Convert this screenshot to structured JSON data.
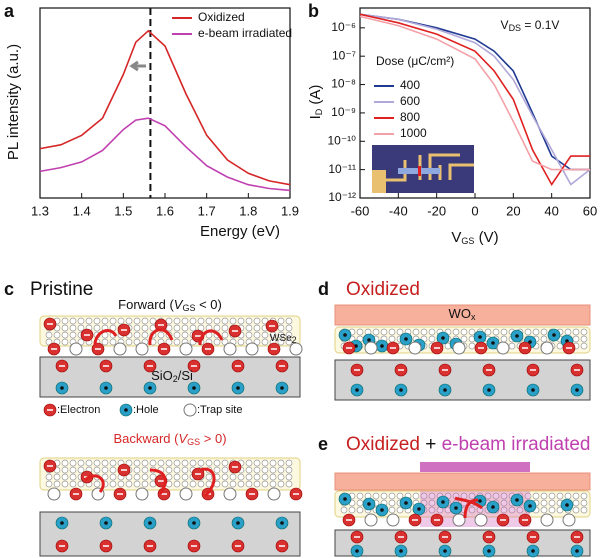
{
  "chart_data": [
    {
      "type": "line",
      "panel_label": "a",
      "xlabel": "Energy (eV)",
      "ylabel": "PL intensity (a.u.)",
      "x": [
        1.3,
        1.35,
        1.4,
        1.45,
        1.5,
        1.53,
        1.56,
        1.6,
        1.65,
        1.7,
        1.75,
        1.8,
        1.85,
        1.9
      ],
      "series": [
        {
          "name": "Oxidized",
          "color": "#d62728",
          "values": [
            0.26,
            0.28,
            0.33,
            0.42,
            0.65,
            0.82,
            0.88,
            0.8,
            0.55,
            0.33,
            0.2,
            0.13,
            0.09,
            0.07
          ]
        },
        {
          "name": "e-beam irradiated",
          "color": "#c040b0",
          "values": [
            0.14,
            0.16,
            0.19,
            0.25,
            0.36,
            0.41,
            0.42,
            0.38,
            0.27,
            0.17,
            0.11,
            0.07,
            0.05,
            0.04
          ]
        }
      ],
      "xlim": [
        1.3,
        1.9
      ],
      "xticks": [
        1.3,
        1.4,
        1.5,
        1.6,
        1.7,
        1.8,
        1.9
      ],
      "ylim": [
        0,
        1
      ],
      "vline": 1.565,
      "legend": "upper right"
    },
    {
      "type": "line",
      "panel_label": "b",
      "xlabel": [
        "V",
        "GS",
        " (V)"
      ],
      "ylabel": [
        "I",
        "D",
        " (A)"
      ],
      "annotation": [
        "V",
        "DS",
        " = 0.1V"
      ],
      "legend_title": "Dose (μC/cm²)",
      "ylog": true,
      "x": [
        -60,
        -40,
        -20,
        0,
        10,
        20,
        30,
        40,
        50,
        60
      ],
      "series": [
        {
          "name": "400",
          "color": "#1f3a93",
          "values": [
            3e-06,
            2e-06,
            1e-06,
            4e-07,
            1.5e-07,
            3e-08,
            1e-09,
            3e-11,
            1e-11,
            1e-11
          ]
        },
        {
          "name": "600",
          "color": "#b0a8d8",
          "values": [
            3e-06,
            2e-06,
            9e-07,
            3e-07,
            1e-07,
            1.5e-08,
            8e-10,
            5e-11,
            3e-12,
            1e-11
          ]
        },
        {
          "name": "800",
          "color": "#e02020",
          "values": [
            3e-06,
            1.5e-06,
            6e-07,
            1.5e-07,
            3e-08,
            3e-09,
            5e-11,
            3e-12,
            3e-11,
            3e-11
          ]
        },
        {
          "name": "1000",
          "color": "#f4a0a8",
          "values": [
            2.5e-06,
            1.2e-06,
            4e-07,
            8e-08,
            1e-08,
            5e-10,
            2e-11,
            1e-11,
            1e-11,
            1e-11
          ]
        }
      ],
      "xlim": [
        -60,
        60
      ],
      "xticks": [
        -60,
        -40,
        -20,
        0,
        20,
        40,
        60
      ],
      "ylim": [
        1e-12,
        5e-06
      ],
      "yticks": [
        {
          "value": 1e-12,
          "label": "10⁻¹²"
        },
        {
          "value": 1e-11,
          "label": "10⁻¹¹"
        },
        {
          "value": 1e-10,
          "label": "10⁻¹⁰"
        },
        {
          "value": 1e-09,
          "label": "10⁻⁹"
        },
        {
          "value": 1e-08,
          "label": "10⁻⁸"
        },
        {
          "value": 1e-07,
          "label": "10⁻⁷"
        },
        {
          "value": 1e-06,
          "label": "10⁻⁶"
        }
      ],
      "legend": "upper left"
    }
  ],
  "panels": [
    {
      "label": "c",
      "title": "Pristine",
      "forward": [
        "Forward (",
        "V",
        "GS",
        " < 0)"
      ],
      "material": [
        "WSe",
        "2"
      ],
      "substrate": [
        "SiO",
        "2",
        "/Si"
      ],
      "legend": [
        ":Electron",
        ":Hole",
        ":Trap site"
      ],
      "backward": [
        "Backward (",
        "V",
        "GS",
        " > 0)"
      ]
    },
    {
      "label": "d",
      "title": "Oxidized",
      "oxide": [
        "WO",
        "x"
      ]
    },
    {
      "label": "e",
      "title": [
        "Oxidized",
        " + ",
        "e-beam irradiated"
      ]
    }
  ]
}
